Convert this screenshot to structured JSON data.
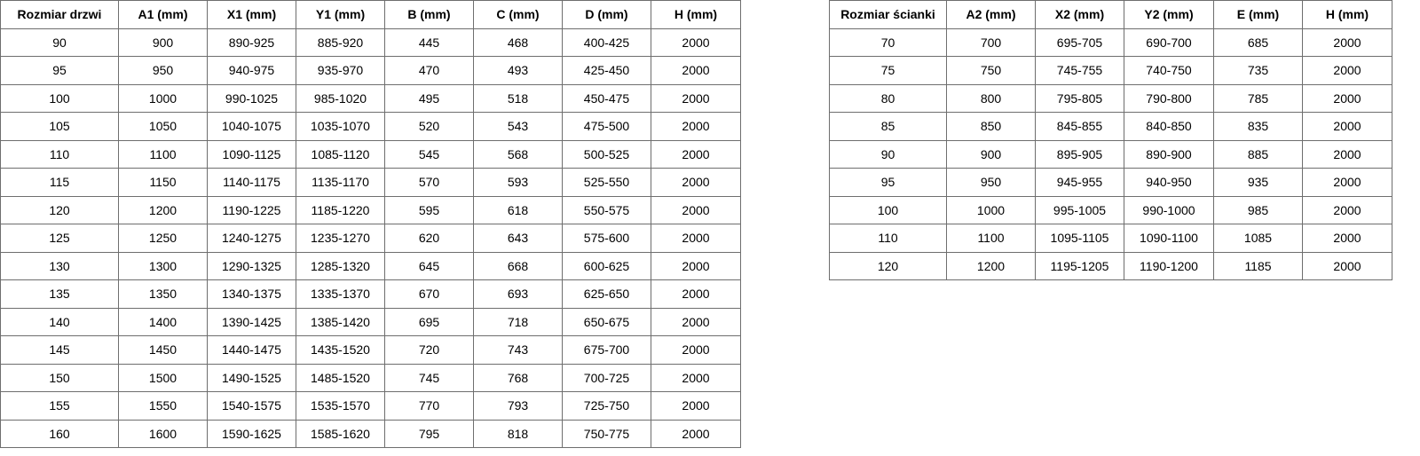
{
  "doors_table": {
    "headers": [
      "Rozmiar drzwi",
      "A1 (mm)",
      "X1 (mm)",
      "Y1 (mm)",
      "B (mm)",
      "C (mm)",
      "D (mm)",
      "H (mm)"
    ],
    "rows": [
      [
        "90",
        "900",
        "890-925",
        "885-920",
        "445",
        "468",
        "400-425",
        "2000"
      ],
      [
        "95",
        "950",
        "940-975",
        "935-970",
        "470",
        "493",
        "425-450",
        "2000"
      ],
      [
        "100",
        "1000",
        "990-1025",
        "985-1020",
        "495",
        "518",
        "450-475",
        "2000"
      ],
      [
        "105",
        "1050",
        "1040-1075",
        "1035-1070",
        "520",
        "543",
        "475-500",
        "2000"
      ],
      [
        "110",
        "1100",
        "1090-1125",
        "1085-1120",
        "545",
        "568",
        "500-525",
        "2000"
      ],
      [
        "115",
        "1150",
        "1140-1175",
        "1135-1170",
        "570",
        "593",
        "525-550",
        "2000"
      ],
      [
        "120",
        "1200",
        "1190-1225",
        "1185-1220",
        "595",
        "618",
        "550-575",
        "2000"
      ],
      [
        "125",
        "1250",
        "1240-1275",
        "1235-1270",
        "620",
        "643",
        "575-600",
        "2000"
      ],
      [
        "130",
        "1300",
        "1290-1325",
        "1285-1320",
        "645",
        "668",
        "600-625",
        "2000"
      ],
      [
        "135",
        "1350",
        "1340-1375",
        "1335-1370",
        "670",
        "693",
        "625-650",
        "2000"
      ],
      [
        "140",
        "1400",
        "1390-1425",
        "1385-1420",
        "695",
        "718",
        "650-675",
        "2000"
      ],
      [
        "145",
        "1450",
        "1440-1475",
        "1435-1520",
        "720",
        "743",
        "675-700",
        "2000"
      ],
      [
        "150",
        "1500",
        "1490-1525",
        "1485-1520",
        "745",
        "768",
        "700-725",
        "2000"
      ],
      [
        "155",
        "1550",
        "1540-1575",
        "1535-1570",
        "770",
        "793",
        "725-750",
        "2000"
      ],
      [
        "160",
        "1600",
        "1590-1625",
        "1585-1620",
        "795",
        "818",
        "750-775",
        "2000"
      ]
    ]
  },
  "wall_table": {
    "headers": [
      "Rozmiar ścianki",
      "A2 (mm)",
      "X2 (mm)",
      "Y2 (mm)",
      "E (mm)",
      "H (mm)"
    ],
    "rows": [
      [
        "70",
        "700",
        "695-705",
        "690-700",
        "685",
        "2000"
      ],
      [
        "75",
        "750",
        "745-755",
        "740-750",
        "735",
        "2000"
      ],
      [
        "80",
        "800",
        "795-805",
        "790-800",
        "785",
        "2000"
      ],
      [
        "85",
        "850",
        "845-855",
        "840-850",
        "835",
        "2000"
      ],
      [
        "90",
        "900",
        "895-905",
        "890-900",
        "885",
        "2000"
      ],
      [
        "95",
        "950",
        "945-955",
        "940-950",
        "935",
        "2000"
      ],
      [
        "100",
        "1000",
        "995-1005",
        "990-1000",
        "985",
        "2000"
      ],
      [
        "110",
        "1100",
        "1095-1105",
        "1090-1100",
        "1085",
        "2000"
      ],
      [
        "120",
        "1200",
        "1195-1205",
        "1190-1200",
        "1185",
        "2000"
      ]
    ]
  }
}
